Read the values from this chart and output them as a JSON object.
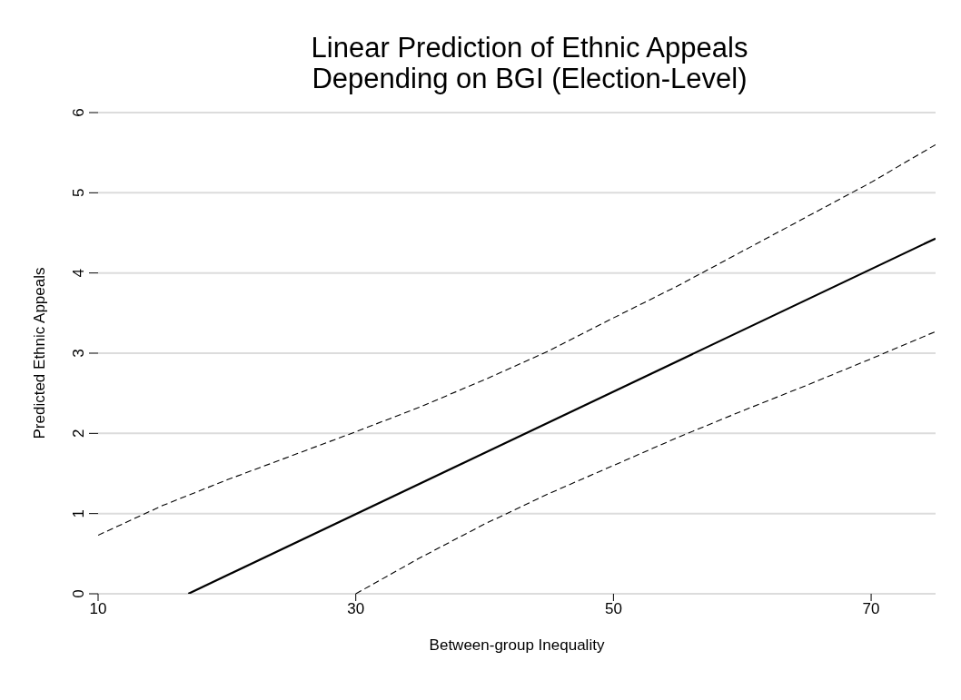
{
  "chart_data": {
    "type": "line",
    "title": "Linear Prediction of Ethnic Appeals Depending on BGI (Election-Level)",
    "xlabel": "Between-group Inequality",
    "ylabel": "Predicted Ethnic Appeals",
    "xlim": [
      10,
      75
    ],
    "xticks": [
      10,
      30,
      50,
      70
    ],
    "ylim": [
      0,
      6
    ],
    "yticks": [
      0,
      1,
      2,
      3,
      4,
      5,
      6
    ],
    "grid": "y",
    "marker": "none",
    "series": [
      {
        "color": "#000000",
        "line_style": "solid",
        "x": [
          17,
          75
        ],
        "values": [
          0,
          4.43
        ]
      },
      {
        "color": "#000000",
        "line_style": "dashed",
        "x": [
          10,
          15,
          20,
          25,
          30,
          35,
          40,
          45,
          50,
          55,
          60,
          65,
          70,
          75
        ],
        "values": [
          0.73,
          1.1,
          1.42,
          1.72,
          2.02,
          2.33,
          2.67,
          3.03,
          3.44,
          3.84,
          4.27,
          4.7,
          5.13,
          5.6
        ]
      },
      {
        "color": "#000000",
        "line_style": "dashed",
        "x": [
          30,
          35,
          40,
          45,
          50,
          55,
          60,
          65,
          70,
          75
        ],
        "values": [
          0,
          0.45,
          0.87,
          1.25,
          1.6,
          1.95,
          2.28,
          2.6,
          2.93,
          3.27
        ]
      }
    ]
  }
}
